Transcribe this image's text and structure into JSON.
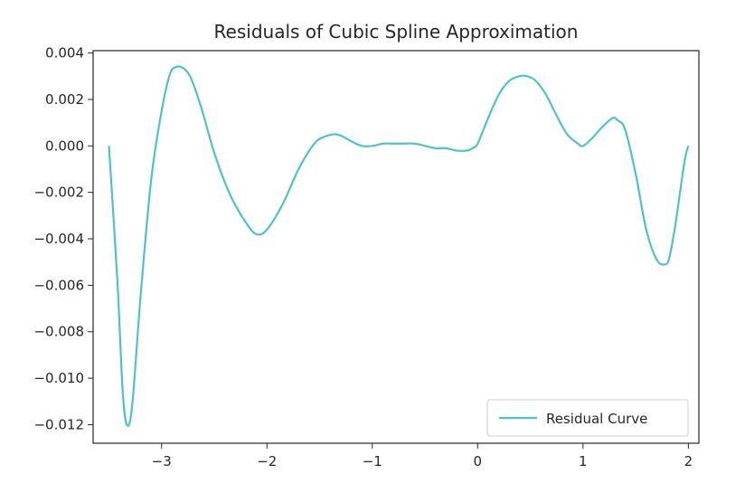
{
  "chart_data": {
    "type": "line",
    "title": "Residuals of Cubic Spline Approximation",
    "xlabel": "",
    "ylabel": "",
    "xlim": [
      -3.65,
      2.1
    ],
    "ylim": [
      -0.0128,
      0.0041
    ],
    "xticks": [
      -3,
      -2,
      -1,
      0,
      1,
      2
    ],
    "xtick_labels": [
      "−3",
      "−2",
      "−1",
      "0",
      "1",
      "2"
    ],
    "yticks": [
      0.004,
      0.002,
      0.0,
      -0.002,
      -0.004,
      -0.006,
      -0.008,
      -0.01,
      -0.012
    ],
    "ytick_labels": [
      "0.004",
      "0.002",
      "0.000",
      "−0.002",
      "−0.004",
      "−0.006",
      "−0.008",
      "−0.010",
      "−0.012"
    ],
    "grid": false,
    "legend_position": "lower-right",
    "series": [
      {
        "name": "Residual Curve",
        "color": "#4cc3cc",
        "x": [
          -3.5,
          -3.42,
          -3.37,
          -3.33,
          -3.28,
          -3.2,
          -3.1,
          -3.0,
          -2.92,
          -2.86,
          -2.82,
          -2.78,
          -2.72,
          -2.62,
          -2.5,
          -2.35,
          -2.2,
          -2.1,
          -2.0,
          -1.85,
          -1.7,
          -1.55,
          -1.45,
          -1.35,
          -1.28,
          -1.2,
          -1.1,
          -1.0,
          -0.9,
          -0.8,
          -0.7,
          -0.6,
          -0.5,
          -0.4,
          -0.3,
          -0.2,
          -0.1,
          -0.05,
          0.0,
          0.1,
          0.2,
          0.3,
          0.4,
          0.47,
          0.55,
          0.65,
          0.75,
          0.85,
          0.95,
          1.0,
          1.08,
          1.18,
          1.28,
          1.33,
          1.4,
          1.5,
          1.6,
          1.7,
          1.78,
          1.82,
          1.88,
          1.93,
          1.97,
          2.0
        ],
        "y": [
          0.0,
          -0.0058,
          -0.0105,
          -0.012,
          -0.0112,
          -0.0065,
          -0.0015,
          0.0015,
          0.0031,
          0.0034,
          0.0034,
          0.0033,
          0.0029,
          0.0016,
          -0.0003,
          -0.0021,
          -0.0033,
          -0.0038,
          -0.0036,
          -0.0025,
          -0.001,
          0.0001,
          0.0004,
          0.0005,
          0.0004,
          0.0002,
          0.0,
          0.0,
          0.0001,
          0.0001,
          0.0001,
          0.0001,
          0.0,
          -0.0001,
          -0.0001,
          -0.0002,
          -0.0002,
          -0.0001,
          0.0001,
          0.0012,
          0.0022,
          0.0028,
          0.003,
          0.003,
          0.0028,
          0.0022,
          0.0013,
          0.0005,
          0.0001,
          0.0,
          0.0003,
          0.0008,
          0.0012,
          0.0011,
          0.0007,
          -0.0012,
          -0.0036,
          -0.0049,
          -0.0051,
          -0.0048,
          -0.0033,
          -0.0017,
          -0.0005,
          0.0
        ]
      }
    ]
  }
}
